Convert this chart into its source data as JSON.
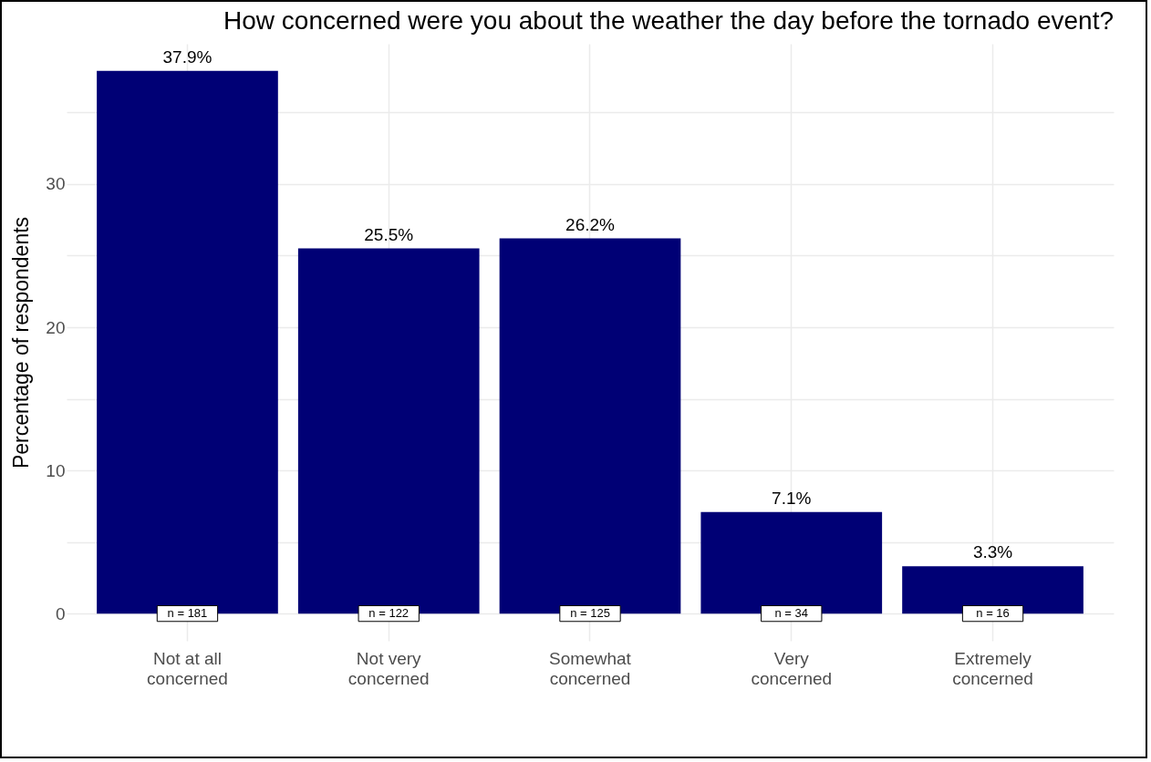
{
  "chart_data": {
    "type": "bar",
    "title": "How concerned were you about the weather the day before the tornado event?",
    "ylabel": "Percentage of respondents",
    "categories": [
      "Not at all concerned",
      "Not very concerned",
      "Somewhat concerned",
      "Very concerned",
      "Extremely concerned"
    ],
    "values": [
      37.9,
      25.5,
      26.2,
      7.1,
      3.3
    ],
    "value_labels": [
      "37.9%",
      "25.5%",
      "26.2%",
      "7.1%",
      "3.3%"
    ],
    "color": "#000075",
    "ylim": [
      -1.9,
      39.8
    ],
    "yticks": [
      0,
      {
        "value": 5,
        "label": null
      },
      10,
      {
        "value": 15,
        "label": null
      },
      20,
      {
        "value": 25,
        "label": null
      },
      30,
      {
        "value": 35,
        "label": null
      }
    ],
    "grid": true,
    "annotations": [
      {
        "text": "n = 181",
        "x": "Not at all concerned",
        "y": 0
      },
      {
        "text": "n = 122",
        "x": "Not very concerned",
        "y": 0
      },
      {
        "text": "n = 125",
        "x": "Somewhat concerned",
        "y": 0
      },
      {
        "text": "n = 34",
        "x": "Very concerned",
        "y": 0
      },
      {
        "text": "n = 16",
        "x": "Extremely concerned",
        "y": 0
      }
    ]
  }
}
